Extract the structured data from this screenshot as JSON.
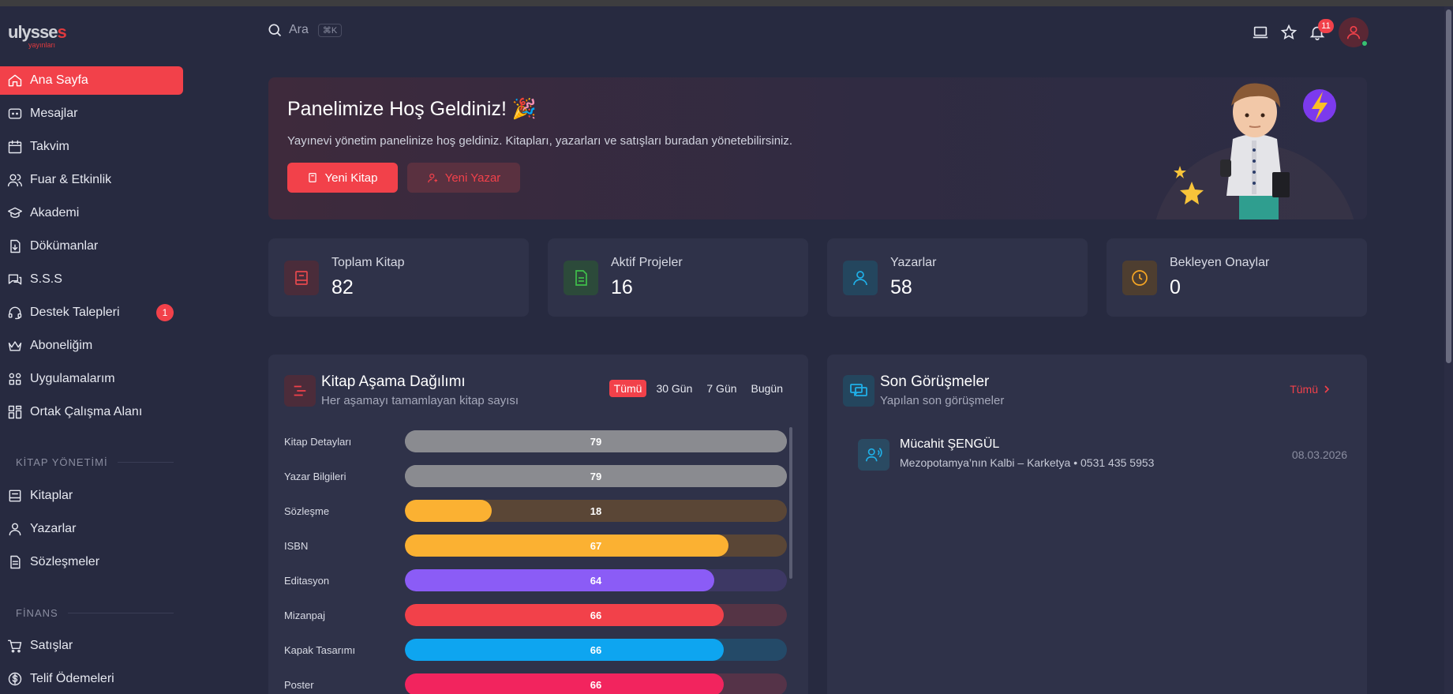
{
  "logo": {
    "brand_a": "ulysse",
    "brand_b": "s",
    "sub": "yayınları"
  },
  "sidebar": {
    "items": [
      {
        "label": "Ana Sayfa",
        "icon": "home-icon"
      },
      {
        "label": "Mesajlar",
        "icon": "message-icon"
      },
      {
        "label": "Takvim",
        "icon": "calendar-icon"
      },
      {
        "label": "Fuar & Etkinlik",
        "icon": "users-icon"
      },
      {
        "label": "Akademi",
        "icon": "graduation-cap-icon"
      },
      {
        "label": "Dökümanlar",
        "icon": "document-download-icon"
      },
      {
        "label": "S.S.S",
        "icon": "chat-question-icon"
      },
      {
        "label": "Destek Talepleri",
        "icon": "headset-icon",
        "badge": "1"
      },
      {
        "label": "Aboneliğim",
        "icon": "crown-icon"
      },
      {
        "label": "Uygulamalarım",
        "icon": "apps-grid-icon"
      },
      {
        "label": "Ortak Çalışma Alanı",
        "icon": "workspace-icon"
      }
    ],
    "section_books": "KİTAP YÖNETİMİ",
    "book_items": [
      {
        "label": "Kitaplar",
        "icon": "book-icon"
      },
      {
        "label": "Yazarlar",
        "icon": "user-icon"
      },
      {
        "label": "Sözleşmeler",
        "icon": "contract-icon"
      }
    ],
    "section_finance": "FİNANS",
    "finance_items": [
      {
        "label": "Satışlar",
        "icon": "cart-icon"
      },
      {
        "label": "Telif Ödemeleri",
        "icon": "dollar-icon"
      }
    ]
  },
  "header": {
    "search_placeholder": "Ara",
    "search_shortcut": "⌘K",
    "notification_count": "11"
  },
  "hero": {
    "title": "Panelimize Hoş Geldiniz! 🎉",
    "text": "Yayınevi yönetim panelinize hoş geldiniz. Kitapları, yazarları ve satışları buradan yönetebilirsiniz.",
    "btn_new_book": "Yeni Kitap",
    "btn_new_author": "Yeni Yazar"
  },
  "stats": [
    {
      "label": "Toplam Kitap",
      "value": "82",
      "color": "#e5484d"
    },
    {
      "label": "Aktif Projeler",
      "value": "16",
      "color": "#3fbf4a"
    },
    {
      "label": "Yazarlar",
      "value": "58",
      "color": "#1fb0e8"
    },
    {
      "label": "Bekleyen Onaylar",
      "value": "0",
      "color": "#f5a524"
    }
  ],
  "stage_panel": {
    "title": "Kitap Aşama Dağılımı",
    "subtitle": "Her aşamayı tamamlayan kitap sayısı",
    "filters": [
      "Tümü",
      "30 Gün",
      "7 Gün",
      "Bugün"
    ],
    "active_filter": 0
  },
  "chart_data": {
    "type": "bar",
    "orientation": "horizontal",
    "max": 79,
    "categories": [
      "Kitap Detayları",
      "Yazar Bilgileri",
      "Sözleşme",
      "ISBN",
      "Editasyon",
      "Mizanpaj",
      "Kapak Tasarımı",
      "Poster"
    ],
    "values": [
      79,
      79,
      18,
      67,
      64,
      66,
      66,
      66
    ],
    "colors": [
      "#8a8b90",
      "#8a8b90",
      "#fbb132",
      "#fbb132",
      "#8b5cf6",
      "#f2414a",
      "#0ea5f0",
      "#f2245e"
    ],
    "track_colors": [
      "#8a8b90",
      "#8a8b90",
      "#5a4636",
      "#5a4636",
      "#3d3864",
      "#553445",
      "#244a68",
      "#553348"
    ]
  },
  "meetings_panel": {
    "title": "Son Görüşmeler",
    "subtitle": "Yapılan son görüşmeler",
    "link_all": "Tümü",
    "items": [
      {
        "name": "Mücahit ŞENGÜL",
        "detail": "Mezopotamya’nın Kalbi – Karketya • 0531 435 5953",
        "date": "08.03.2026"
      }
    ]
  }
}
